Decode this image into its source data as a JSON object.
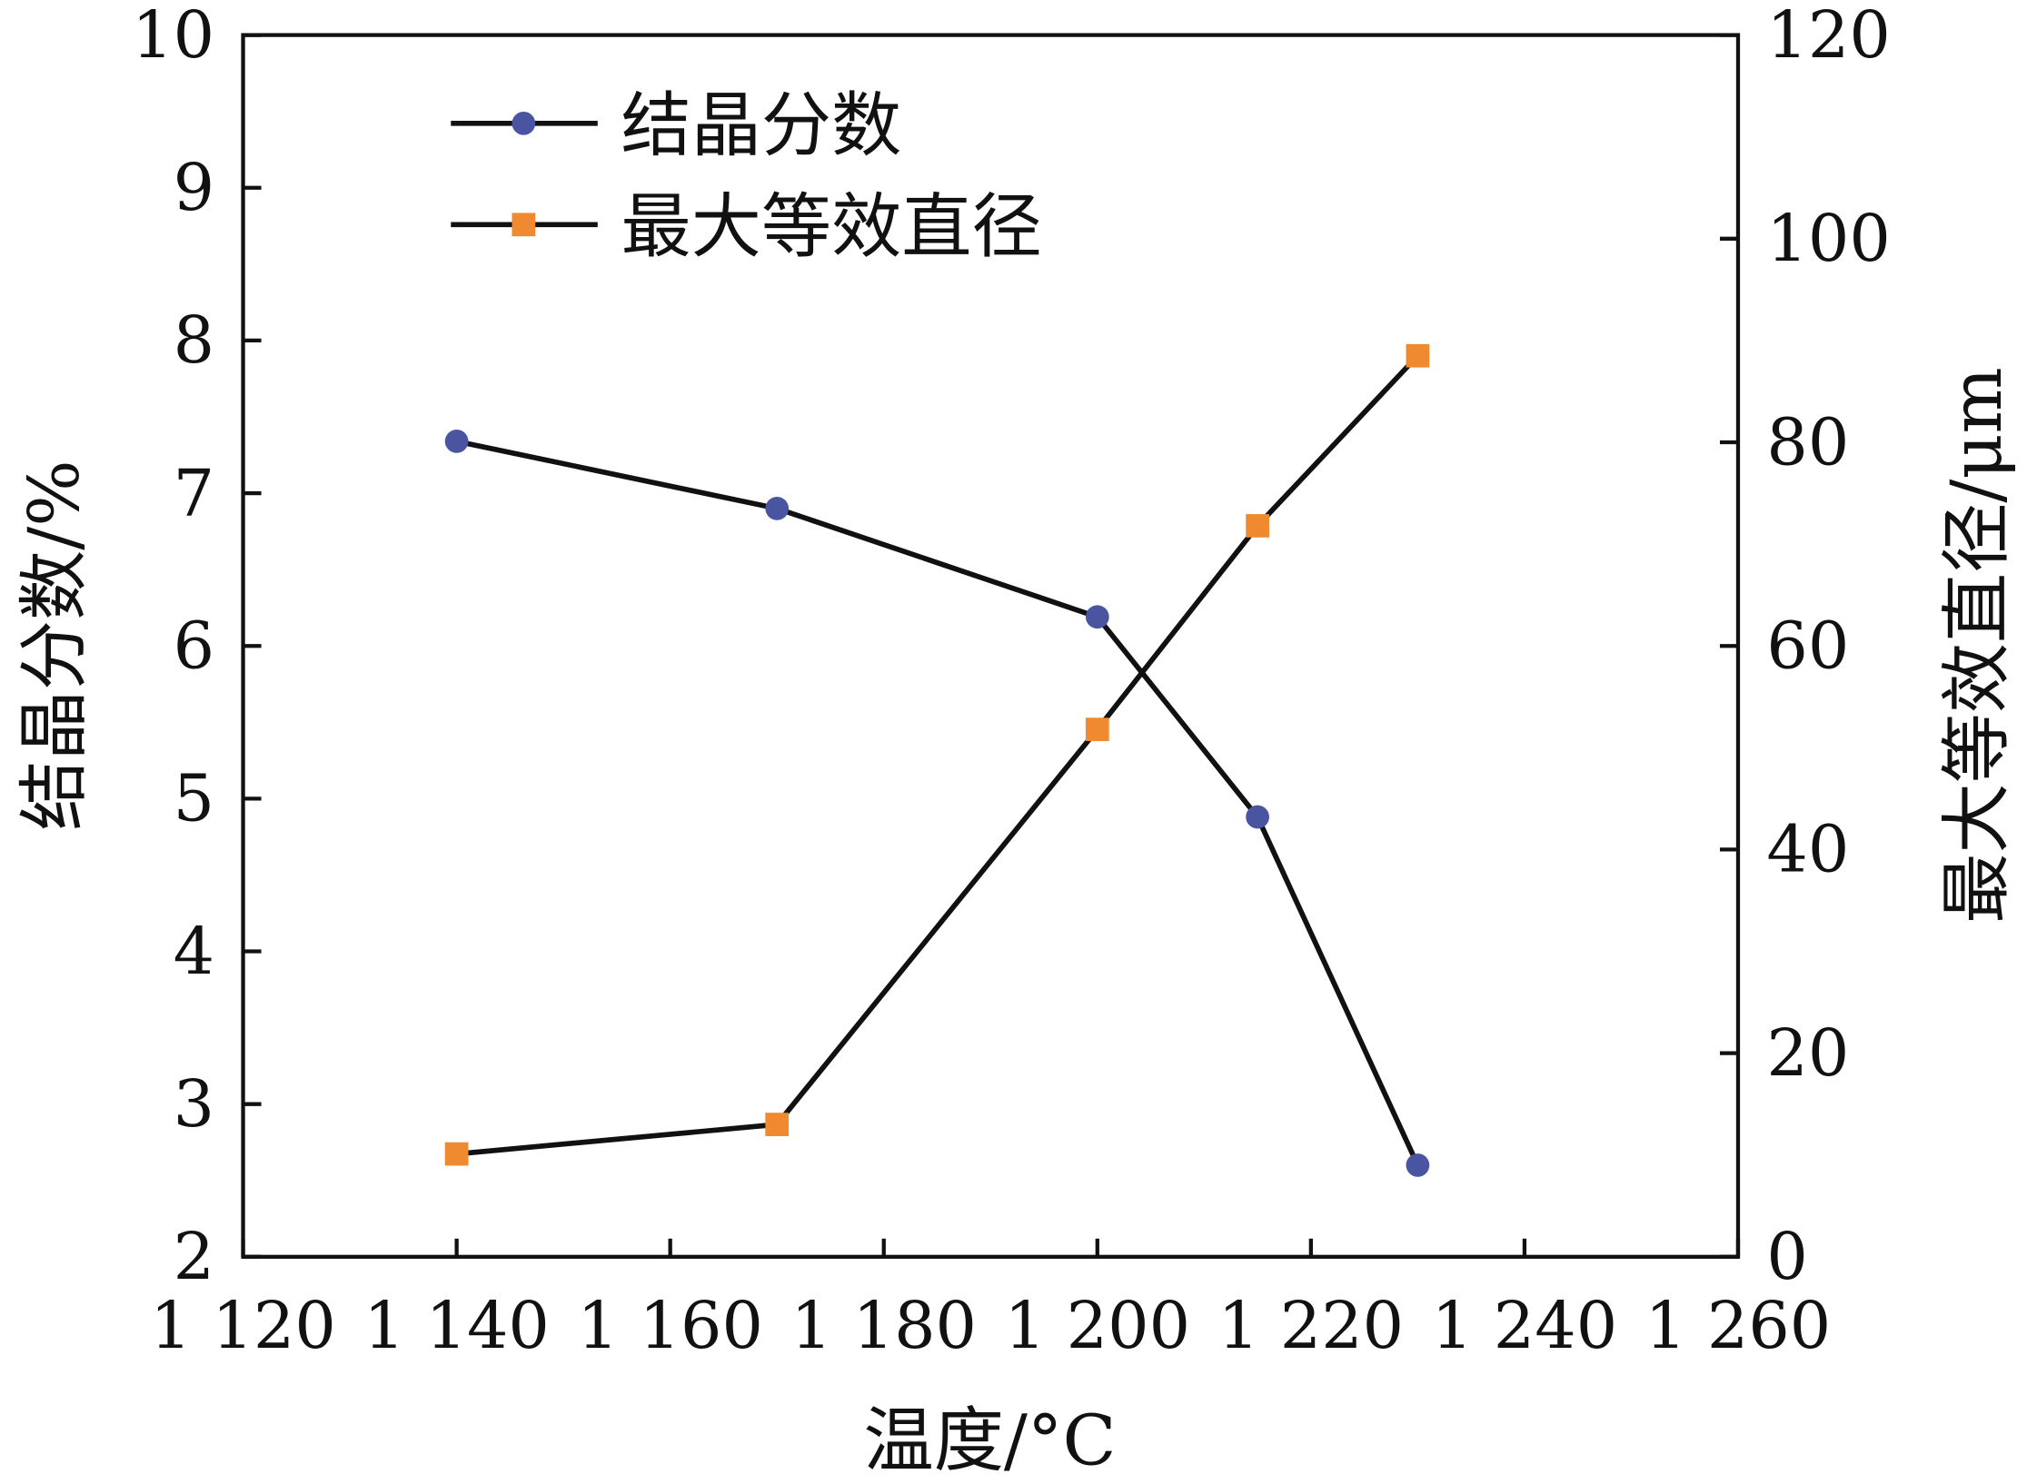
{
  "chart_data": {
    "type": "line",
    "title": "",
    "xlabel": "温度/°C",
    "ylabel": "结晶分数/%",
    "y2label": "最大等效直径/μm",
    "xlim": [
      1120,
      1260
    ],
    "ylim": [
      2,
      10
    ],
    "y2lim": [
      0,
      120
    ],
    "xticks": [
      1120,
      1140,
      1160,
      1180,
      1200,
      1220,
      1240,
      1260
    ],
    "xtick_labels": [
      "1 120",
      "1 140",
      "1 160",
      "1 180",
      "1 200",
      "1 220",
      "1 240",
      "1 260"
    ],
    "yticks": [
      "2",
      "3",
      "4",
      "5",
      "6",
      "7",
      "8",
      "9",
      "10"
    ],
    "y2ticks": [
      "0",
      "20",
      "40",
      "60",
      "80",
      "100",
      "120"
    ],
    "grid": false,
    "legend_position": "top-left",
    "series": [
      {
        "name": "结晶分数",
        "axis": "left",
        "marker": "circle",
        "color": "#4a55a2",
        "line_color": "#111111",
        "x": [
          1140,
          1170,
          1200,
          1215,
          1230
        ],
        "y": [
          7.34,
          6.9,
          6.19,
          4.88,
          2.6
        ]
      },
      {
        "name": "最大等效直径",
        "axis": "right",
        "marker": "square",
        "color": "#f08a30",
        "line_color": "#111111",
        "x": [
          1140,
          1170,
          1200,
          1215,
          1230
        ],
        "y": [
          10.1,
          13.0,
          51.8,
          71.8,
          88.5
        ]
      }
    ]
  }
}
